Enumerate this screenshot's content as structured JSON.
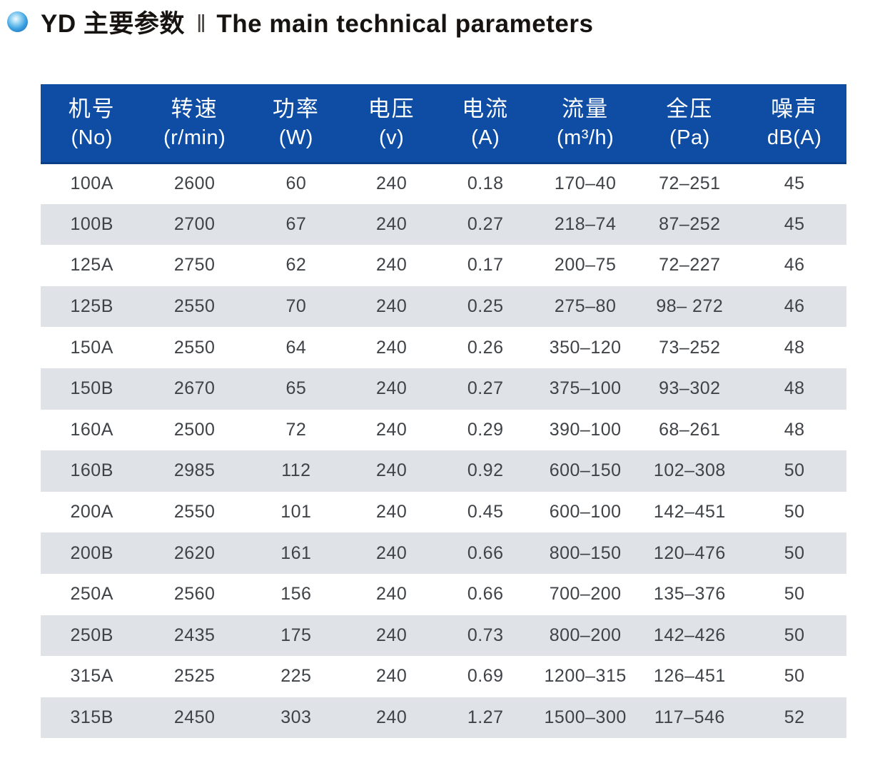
{
  "title": {
    "bullet_icon": "blue-sphere-bullet",
    "cn": "YD 主要参数",
    "separator": "‖",
    "en": "The main technical parameters"
  },
  "colors": {
    "header_bg": "#0e4da3",
    "header_border": "#0b3f87",
    "row_alt_bg": "#dfe3e7",
    "row_bg": "#ffffff",
    "cell_text": "#3f4347",
    "header_text": "#ffffff",
    "title_text": "#171310"
  },
  "table": {
    "columns": [
      {
        "cn": "机号",
        "unit": "(No)"
      },
      {
        "cn": "转速",
        "unit": "(r/min)"
      },
      {
        "cn": "功率",
        "unit": "(W)"
      },
      {
        "cn": "电压",
        "unit": "(v)"
      },
      {
        "cn": "电流",
        "unit": "(A)"
      },
      {
        "cn": "流量",
        "unit": "(m³/h)"
      },
      {
        "cn": "全压",
        "unit": "(Pa)"
      },
      {
        "cn": "噪声",
        "unit": "dB(A)"
      }
    ],
    "rows": [
      [
        "100A",
        "2600",
        "60",
        "240",
        "0.18",
        "170–40",
        "72–251",
        "45"
      ],
      [
        "100B",
        "2700",
        "67",
        "240",
        "0.27",
        "218–74",
        "87–252",
        "45"
      ],
      [
        "125A",
        "2750",
        "62",
        "240",
        "0.17",
        "200–75",
        "72–227",
        "46"
      ],
      [
        "125B",
        "2550",
        "70",
        "240",
        "0.25",
        "275–80",
        "98– 272",
        "46"
      ],
      [
        "150A",
        "2550",
        "64",
        "240",
        "0.26",
        "350–120",
        "73–252",
        "48"
      ],
      [
        "150B",
        "2670",
        "65",
        "240",
        "0.27",
        "375–100",
        "93–302",
        "48"
      ],
      [
        "160A",
        "2500",
        "72",
        "240",
        "0.29",
        "390–100",
        "68–261",
        "48"
      ],
      [
        "160B",
        "2985",
        "112",
        "240",
        "0.92",
        "600–150",
        "102–308",
        "50"
      ],
      [
        "200A",
        "2550",
        "101",
        "240",
        "0.45",
        "600–100",
        "142–451",
        "50"
      ],
      [
        "200B",
        "2620",
        "161",
        "240",
        "0.66",
        "800–150",
        "120–476",
        "50"
      ],
      [
        "250A",
        "2560",
        "156",
        "240",
        "0.66",
        "700–200",
        "135–376",
        "50"
      ],
      [
        "250B",
        "2435",
        "175",
        "240",
        "0.73",
        "800–200",
        "142–426",
        "50"
      ],
      [
        "315A",
        "2525",
        "225",
        "240",
        "0.69",
        "1200–315",
        "126–451",
        "50"
      ],
      [
        "315B",
        "2450",
        "303",
        "240",
        "1.27",
        "1500–300",
        "117–546",
        "52"
      ]
    ]
  }
}
